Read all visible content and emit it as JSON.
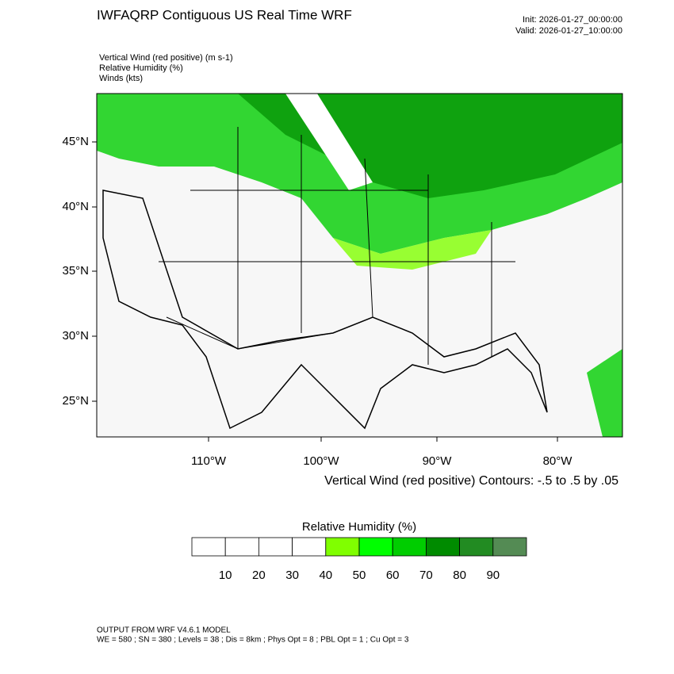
{
  "header": {
    "title": "IWFAQRP Contiguous US Real Time WRF",
    "init": "Init: 2026-01-27_00:00:00",
    "valid": "Valid: 2026-01-27_10:00:00"
  },
  "fields": [
    "Vertical Wind (red positive)   (m s-1)",
    "Relative Humidity   (%)",
    "Winds   (kts)"
  ],
  "map": {
    "lat_labels": [
      "45°N",
      "40°N",
      "35°N",
      "30°N",
      "25°N"
    ],
    "lon_labels": [
      "110°W",
      "100°W",
      "90°W",
      "80°W"
    ],
    "contour_caption": "Vertical Wind (red positive) Contours: -.5 to .5 by .05"
  },
  "colorbar": {
    "title": "Relative Humidity  (%)",
    "labels": [
      10,
      20,
      30,
      40,
      50,
      60,
      70,
      80,
      90
    ],
    "colors": [
      "#ffffff",
      "#ffffff",
      "#ffffff",
      "#ffffff",
      "#80ff00",
      "#00ff00",
      "#00cd00",
      "#008b00",
      "#228b22",
      "#548b54"
    ]
  },
  "footer": {
    "line1": "OUTPUT FROM WRF V4.6.1 MODEL",
    "line2": "WE = 580 ; SN = 380 ; Levels = 38 ; Dis = 8km ; Phys Opt = 8 ; PBL Opt = 1 ; Cu Opt = 3"
  }
}
